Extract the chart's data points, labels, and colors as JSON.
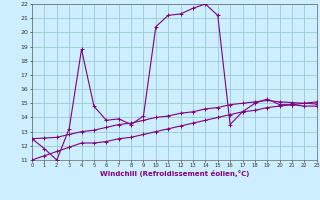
{
  "xlabel": "Windchill (Refroidissement éolien,°C)",
  "bg_color": "#cceeff",
  "line_color": "#800080",
  "grid_color": "#99cccc",
  "hours": [
    0,
    1,
    2,
    3,
    4,
    5,
    6,
    7,
    8,
    9,
    10,
    11,
    12,
    13,
    14,
    15,
    16,
    17,
    18,
    19,
    20,
    21,
    22,
    23
  ],
  "temp_line": [
    12.5,
    11.8,
    11.0,
    13.2,
    18.8,
    14.8,
    13.8,
    13.9,
    13.5,
    14.1,
    20.4,
    21.2,
    21.3,
    21.7,
    22.0,
    21.2,
    13.5,
    14.4,
    15.0,
    15.3,
    14.9,
    14.9,
    14.8,
    14.8
  ],
  "linear_low": [
    11.0,
    11.3,
    11.6,
    11.9,
    12.2,
    12.2,
    12.3,
    12.5,
    12.6,
    12.8,
    13.0,
    13.2,
    13.4,
    13.6,
    13.8,
    14.0,
    14.2,
    14.4,
    14.5,
    14.7,
    14.8,
    14.9,
    15.0,
    15.1
  ],
  "linear_high": [
    12.5,
    12.55,
    12.6,
    12.8,
    13.0,
    13.1,
    13.3,
    13.5,
    13.6,
    13.8,
    14.0,
    14.1,
    14.3,
    14.4,
    14.6,
    14.7,
    14.9,
    15.0,
    15.1,
    15.2,
    15.1,
    15.05,
    15.0,
    14.95
  ],
  "ylim": [
    11,
    22
  ],
  "xlim": [
    0,
    23
  ],
  "yticks": [
    11,
    12,
    13,
    14,
    15,
    16,
    17,
    18,
    19,
    20,
    21,
    22
  ],
  "xticks": [
    0,
    1,
    2,
    3,
    4,
    5,
    6,
    7,
    8,
    9,
    10,
    11,
    12,
    13,
    14,
    15,
    16,
    17,
    18,
    19,
    20,
    21,
    22,
    23
  ]
}
